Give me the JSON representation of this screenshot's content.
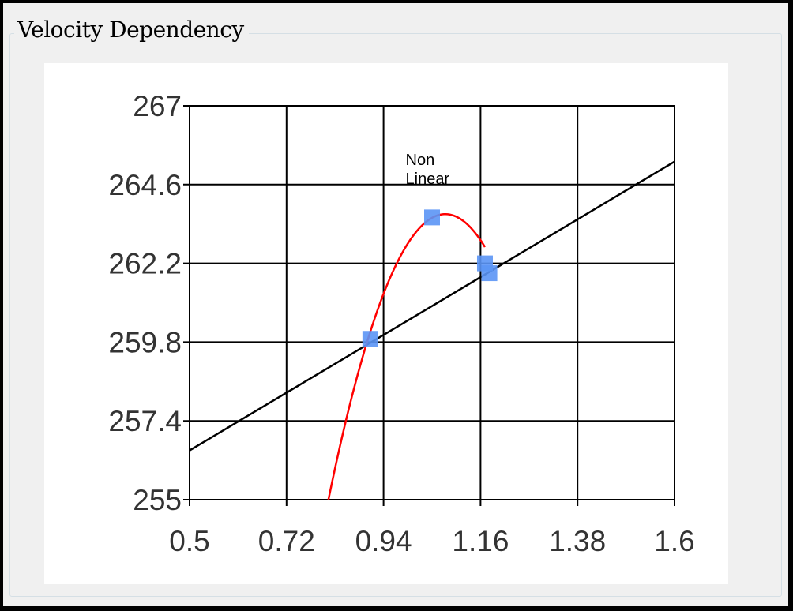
{
  "window": {
    "group_title": "Velocity Dependency"
  },
  "colors": {
    "grid": "#000000",
    "linear_fit": "#000000",
    "nonlinear_fit": "#ff0000",
    "points": "#5b95f5"
  },
  "chart_data": {
    "type": "scatter",
    "title": "",
    "xlabel": "",
    "ylabel": "",
    "xlim": [
      0.5,
      1.6
    ],
    "ylim": [
      255,
      267
    ],
    "xticks": [
      "0.5",
      "0.72",
      "0.94",
      "1.16",
      "1.38",
      "1.6"
    ],
    "yticks": [
      "267",
      "264.6",
      "262.2",
      "259.8",
      "257.4",
      "255"
    ],
    "grid": true,
    "points": [
      {
        "x": 0.91,
        "y": 259.9
      },
      {
        "x": 1.05,
        "y": 263.6
      },
      {
        "x": 1.17,
        "y": 262.2
      },
      {
        "x": 1.18,
        "y": 261.9
      }
    ],
    "fits": [
      {
        "kind": "linear",
        "x_range": [
          0.5,
          1.6
        ],
        "y_at_xmin": 256.5,
        "y_at_xmax": 265.3
      },
      {
        "kind": "nonlinear",
        "x_range": [
          0.815,
          1.17
        ],
        "vertex_x": 1.08,
        "vertex_y": 263.7,
        "y_at_start": 255.0
      }
    ],
    "annotation": {
      "lines": [
        "Non",
        "Linear"
      ],
      "x": 0.99,
      "y": 265.2
    }
  }
}
